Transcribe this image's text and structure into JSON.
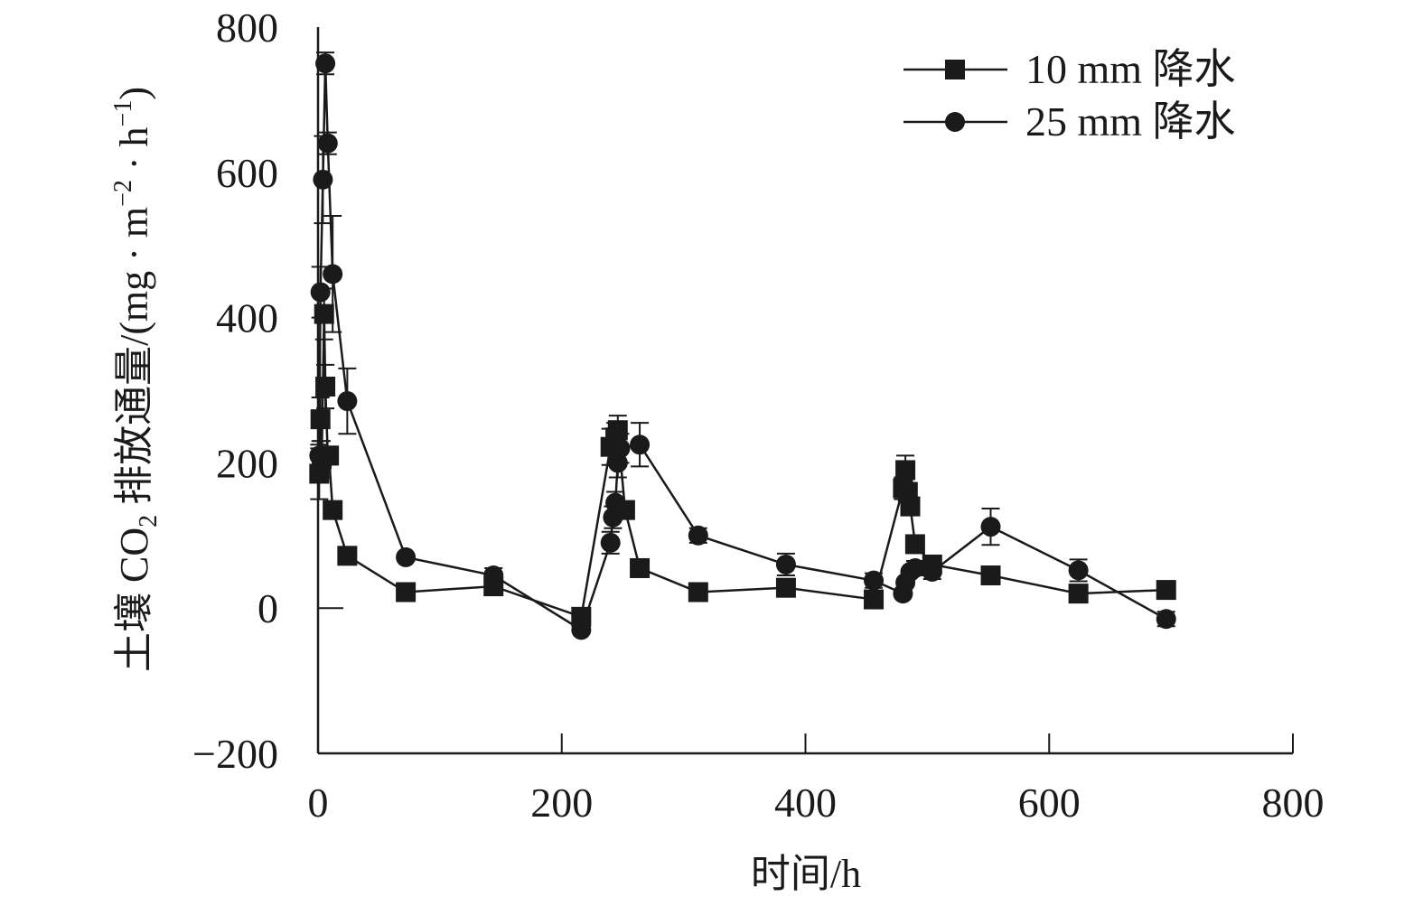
{
  "chart_data": {
    "type": "line",
    "title": "",
    "xlabel": "时间/h",
    "ylabel": {
      "prefix": "土壤 CO",
      "sub": "2",
      "mid": " 排放通量/(mg · m",
      "sup1": "−2",
      "mid2": " · h",
      "sup2": "−1",
      "suffix": ")"
    },
    "xlim": [
      0,
      800
    ],
    "ylim": [
      -200,
      800
    ],
    "xticks": [
      {
        "value": 0,
        "label": "0"
      },
      {
        "value": 200,
        "label": "200"
      },
      {
        "value": 400,
        "label": "400"
      },
      {
        "value": 600,
        "label": "600"
      },
      {
        "value": 800,
        "label": "800"
      }
    ],
    "yticks": [
      {
        "value": -200,
        "label": "−200"
      },
      {
        "value": 0,
        "label": "0"
      },
      {
        "value": 200,
        "label": "200"
      },
      {
        "value": 400,
        "label": "400"
      },
      {
        "value": 600,
        "label": "600"
      },
      {
        "value": 800,
        "label": "800"
      }
    ],
    "legend_position": "top-right",
    "series": [
      {
        "name": "10 mm 降水",
        "marker": "square",
        "color": "#1a1a1a",
        "x": [
          1,
          2,
          3,
          5,
          6,
          8,
          9,
          12,
          24,
          72,
          144,
          216,
          240,
          244,
          246,
          252,
          264,
          312,
          384,
          456,
          480,
          482,
          484,
          486,
          490,
          504,
          552,
          624,
          696
        ],
        "y": [
          185,
          260,
          205,
          405,
          305,
          210,
          210,
          135,
          72,
          22,
          30,
          -12,
          222,
          235,
          245,
          135,
          55,
          22,
          28,
          12,
          165,
          190,
          160,
          140,
          88,
          60,
          45,
          20,
          25
        ],
        "err": [
          35,
          30,
          25,
          35,
          30,
          10,
          10,
          10,
          5,
          5,
          5,
          5,
          25,
          20,
          20,
          5,
          5,
          5,
          5,
          5,
          15,
          20,
          10,
          10,
          10,
          10,
          5,
          10,
          5
        ]
      },
      {
        "name": "25 mm 降水",
        "marker": "circle",
        "color": "#1a1a1a",
        "x": [
          1,
          2,
          4,
          6,
          8,
          12,
          24,
          72,
          144,
          216,
          240,
          242,
          244,
          246,
          248,
          264,
          312,
          384,
          456,
          480,
          482,
          486,
          490,
          504,
          552,
          624,
          696
        ],
        "y": [
          210,
          435,
          590,
          750,
          640,
          460,
          285,
          70,
          45,
          -30,
          90,
          125,
          145,
          200,
          220,
          225,
          100,
          60,
          38,
          20,
          35,
          50,
          55,
          50,
          112,
          52,
          -15
        ],
        "err": [
          15,
          35,
          60,
          15,
          15,
          80,
          45,
          5,
          10,
          5,
          15,
          15,
          15,
          20,
          20,
          30,
          10,
          15,
          10,
          5,
          5,
          5,
          10,
          10,
          25,
          15,
          10
        ]
      }
    ]
  }
}
